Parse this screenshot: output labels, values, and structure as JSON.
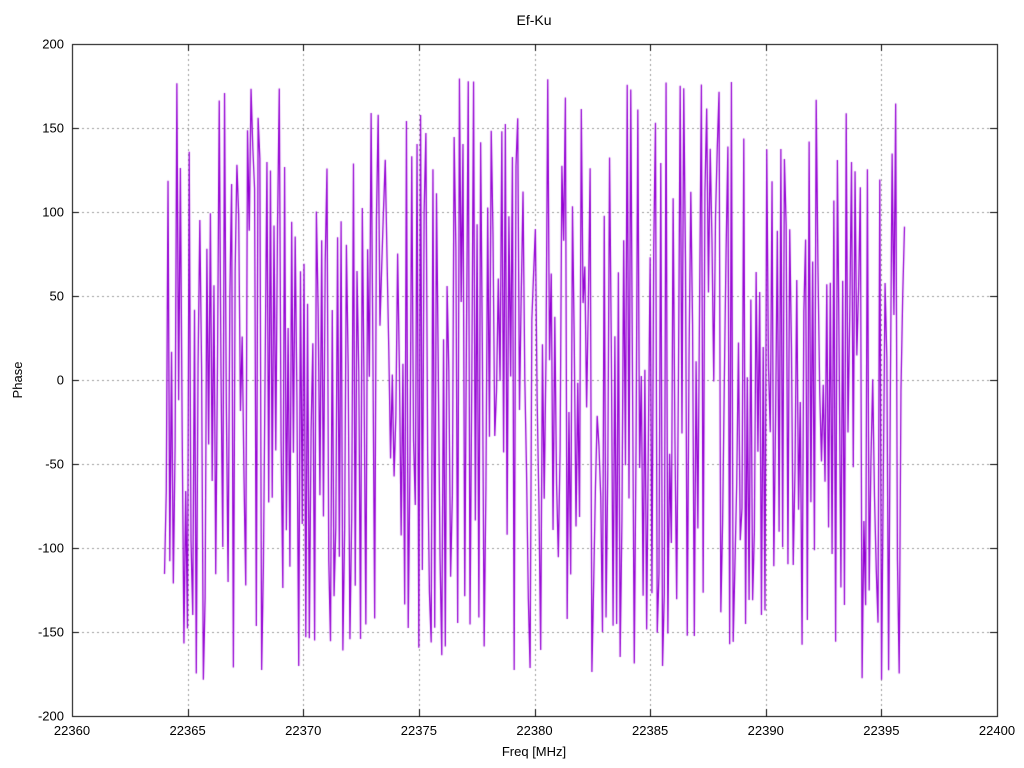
{
  "chart_data": {
    "type": "line",
    "title": "Ef-Ku",
    "xlabel": "Freq [MHz]",
    "ylabel": "Phase",
    "xlim": [
      22360,
      22400
    ],
    "ylim": [
      -200,
      200
    ],
    "xticks": [
      22360,
      22365,
      22370,
      22375,
      22380,
      22385,
      22390,
      22395,
      22400
    ],
    "yticks": [
      200,
      150,
      100,
      50,
      0,
      -50,
      -100,
      -150,
      -200
    ],
    "grid": true,
    "grid_style": "dashed gray at every major tick",
    "legend_position": "none",
    "background_color": "#ffffff",
    "border_color": "#000000",
    "grid_color": "#9b9b9b",
    "series": [
      {
        "name": "phase",
        "color": "#9400d3",
        "x_start": 22364.0,
        "x_end": 22396.0,
        "n_points": 420,
        "y_min": -180,
        "y_max": 180,
        "character": "wrapped interferometric phase noise; phase jumps pseudo-randomly each sample and wraps at +/-180 degrees producing dense vertical strokes across the band 22364-22396 MHz",
        "seed": 1234567
      }
    ]
  }
}
